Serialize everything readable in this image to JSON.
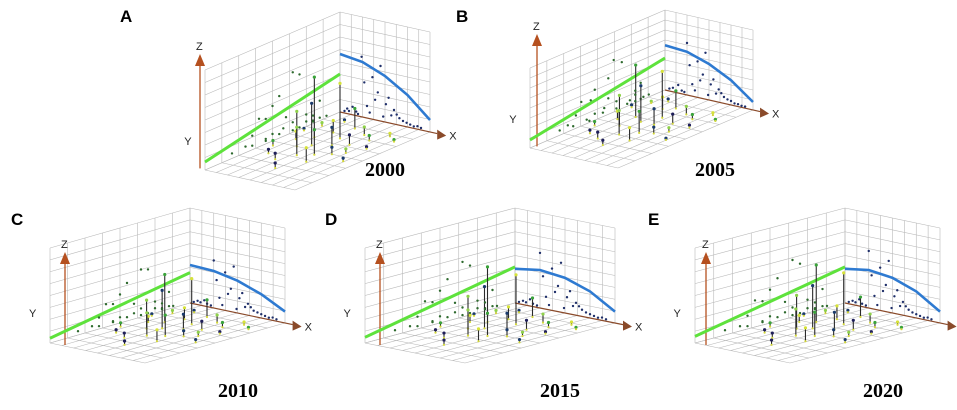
{
  "figure": {
    "panel_count": 5
  },
  "chart_data": [
    {
      "type": "scatter",
      "panel_label": "A",
      "year_label": "2000",
      "axes": {
        "x": "X",
        "y": "Y",
        "z": "Z"
      },
      "grid": true,
      "colors": {
        "xz_trend": "#2e7ad1",
        "yz_trend": "#5ee23c",
        "stem": "#2a2a2a",
        "axis_z": "#b5501f"
      },
      "trend_xz": [
        [
          0.0,
          0.58
        ],
        [
          0.25,
          0.55
        ],
        [
          0.5,
          0.46
        ],
        [
          0.75,
          0.32
        ],
        [
          1.0,
          0.12
        ]
      ],
      "trend_yz": [
        [
          0.0,
          0.08
        ],
        [
          1.0,
          0.38
        ]
      ],
      "points": [
        {
          "x": 0.05,
          "y": 0.3,
          "z": 0.02
        },
        {
          "x": 0.08,
          "y": 0.55,
          "z": 0.05
        },
        {
          "x": 0.1,
          "y": 0.2,
          "z": 0.03
        },
        {
          "x": 0.14,
          "y": 0.42,
          "z": 0.08
        },
        {
          "x": 0.18,
          "y": 0.65,
          "z": 0.04
        },
        {
          "x": 0.2,
          "y": 0.1,
          "z": 0.02
        },
        {
          "x": 0.24,
          "y": 0.35,
          "z": 0.6
        },
        {
          "x": 0.27,
          "y": 0.5,
          "z": 0.35
        },
        {
          "x": 0.3,
          "y": 0.25,
          "z": 0.12
        },
        {
          "x": 0.33,
          "y": 0.7,
          "z": 0.06
        },
        {
          "x": 0.36,
          "y": 0.45,
          "z": 0.42
        },
        {
          "x": 0.39,
          "y": 0.15,
          "z": 0.2
        },
        {
          "x": 0.42,
          "y": 0.6,
          "z": 0.28
        },
        {
          "x": 0.45,
          "y": 0.3,
          "z": 0.55
        },
        {
          "x": 0.48,
          "y": 0.8,
          "z": 0.05
        },
        {
          "x": 0.51,
          "y": 0.4,
          "z": 0.18
        },
        {
          "x": 0.54,
          "y": 0.55,
          "z": 0.25
        },
        {
          "x": 0.57,
          "y": 0.2,
          "z": 0.08
        },
        {
          "x": 0.6,
          "y": 0.65,
          "z": 0.14
        },
        {
          "x": 0.63,
          "y": 0.35,
          "z": 0.1
        },
        {
          "x": 0.66,
          "y": 0.5,
          "z": 0.07
        },
        {
          "x": 0.7,
          "y": 0.25,
          "z": 0.05
        },
        {
          "x": 0.74,
          "y": 0.45,
          "z": 0.04
        },
        {
          "x": 0.78,
          "y": 0.15,
          "z": 0.03
        },
        {
          "x": 0.82,
          "y": 0.35,
          "z": 0.02
        },
        {
          "x": 0.86,
          "y": 0.55,
          "z": 0.03
        },
        {
          "x": 0.9,
          "y": 0.2,
          "z": 0.02
        }
      ]
    },
    {
      "type": "scatter",
      "panel_label": "B",
      "year_label": "2005",
      "axes": {
        "x": "X",
        "y": "Y",
        "z": "Z"
      },
      "grid": true,
      "colors": {
        "xz_trend": "#2e7ad1",
        "yz_trend": "#5ee23c",
        "stem": "#2a2a2a",
        "axis_z": "#b5501f"
      },
      "trend_xz": [
        [
          0.0,
          0.56
        ],
        [
          0.25,
          0.54
        ],
        [
          0.5,
          0.45
        ],
        [
          0.75,
          0.31
        ],
        [
          1.0,
          0.1
        ]
      ],
      "trend_yz": [
        [
          0.0,
          0.1
        ],
        [
          1.0,
          0.4
        ]
      ],
      "points": [
        {
          "x": 0.05,
          "y": 0.28,
          "z": 0.03
        },
        {
          "x": 0.09,
          "y": 0.58,
          "z": 0.05
        },
        {
          "x": 0.12,
          "y": 0.18,
          "z": 0.02
        },
        {
          "x": 0.15,
          "y": 0.45,
          "z": 0.1
        },
        {
          "x": 0.19,
          "y": 0.68,
          "z": 0.04
        },
        {
          "x": 0.22,
          "y": 0.12,
          "z": 0.03
        },
        {
          "x": 0.25,
          "y": 0.38,
          "z": 0.65
        },
        {
          "x": 0.28,
          "y": 0.52,
          "z": 0.38
        },
        {
          "x": 0.31,
          "y": 0.22,
          "z": 0.15
        },
        {
          "x": 0.34,
          "y": 0.72,
          "z": 0.08
        },
        {
          "x": 0.37,
          "y": 0.42,
          "z": 0.45
        },
        {
          "x": 0.4,
          "y": 0.18,
          "z": 0.22
        },
        {
          "x": 0.43,
          "y": 0.62,
          "z": 0.3
        },
        {
          "x": 0.46,
          "y": 0.32,
          "z": 0.58
        },
        {
          "x": 0.49,
          "y": 0.78,
          "z": 0.06
        },
        {
          "x": 0.52,
          "y": 0.42,
          "z": 0.2
        },
        {
          "x": 0.55,
          "y": 0.55,
          "z": 0.27
        },
        {
          "x": 0.58,
          "y": 0.22,
          "z": 0.1
        },
        {
          "x": 0.61,
          "y": 0.66,
          "z": 0.16
        },
        {
          "x": 0.64,
          "y": 0.36,
          "z": 0.12
        },
        {
          "x": 0.67,
          "y": 0.52,
          "z": 0.08
        },
        {
          "x": 0.71,
          "y": 0.26,
          "z": 0.06
        },
        {
          "x": 0.75,
          "y": 0.46,
          "z": 0.05
        },
        {
          "x": 0.79,
          "y": 0.16,
          "z": 0.03
        },
        {
          "x": 0.83,
          "y": 0.36,
          "z": 0.03
        },
        {
          "x": 0.87,
          "y": 0.56,
          "z": 0.02
        },
        {
          "x": 0.91,
          "y": 0.22,
          "z": 0.02
        }
      ]
    },
    {
      "type": "scatter",
      "panel_label": "C",
      "year_label": "2010",
      "axes": {
        "x": "X",
        "y": "Y",
        "z": "Z"
      },
      "grid": true,
      "colors": {
        "xz_trend": "#2e7ad1",
        "yz_trend": "#5ee23c",
        "stem": "#2a2a2a",
        "axis_z": "#b5501f"
      },
      "trend_xz": [
        [
          0.0,
          0.4
        ],
        [
          0.25,
          0.39
        ],
        [
          0.5,
          0.34
        ],
        [
          0.75,
          0.25
        ],
        [
          1.0,
          0.12
        ]
      ],
      "trend_yz": [
        [
          0.0,
          0.05
        ],
        [
          1.0,
          0.32
        ]
      ],
      "points": [
        {
          "x": 0.04,
          "y": 0.3,
          "z": 0.02
        },
        {
          "x": 0.08,
          "y": 0.55,
          "z": 0.04
        },
        {
          "x": 0.11,
          "y": 0.2,
          "z": 0.03
        },
        {
          "x": 0.15,
          "y": 0.4,
          "z": 0.06
        },
        {
          "x": 0.18,
          "y": 0.65,
          "z": 0.03
        },
        {
          "x": 0.22,
          "y": 0.12,
          "z": 0.02
        },
        {
          "x": 0.25,
          "y": 0.35,
          "z": 0.5
        },
        {
          "x": 0.28,
          "y": 0.5,
          "z": 0.3
        },
        {
          "x": 0.31,
          "y": 0.25,
          "z": 0.12
        },
        {
          "x": 0.34,
          "y": 0.7,
          "z": 0.05
        },
        {
          "x": 0.37,
          "y": 0.45,
          "z": 0.4
        },
        {
          "x": 0.4,
          "y": 0.15,
          "z": 0.18
        },
        {
          "x": 0.43,
          "y": 0.6,
          "z": 0.24
        },
        {
          "x": 0.46,
          "y": 0.3,
          "z": 0.48
        },
        {
          "x": 0.49,
          "y": 0.8,
          "z": 0.04
        },
        {
          "x": 0.52,
          "y": 0.4,
          "z": 0.16
        },
        {
          "x": 0.55,
          "y": 0.55,
          "z": 0.22
        },
        {
          "x": 0.58,
          "y": 0.2,
          "z": 0.08
        },
        {
          "x": 0.61,
          "y": 0.65,
          "z": 0.12
        },
        {
          "x": 0.64,
          "y": 0.35,
          "z": 0.09
        },
        {
          "x": 0.67,
          "y": 0.5,
          "z": 0.06
        },
        {
          "x": 0.71,
          "y": 0.25,
          "z": 0.05
        },
        {
          "x": 0.75,
          "y": 0.45,
          "z": 0.04
        },
        {
          "x": 0.79,
          "y": 0.15,
          "z": 0.03
        },
        {
          "x": 0.83,
          "y": 0.35,
          "z": 0.02
        },
        {
          "x": 0.87,
          "y": 0.55,
          "z": 0.03
        },
        {
          "x": 0.91,
          "y": 0.2,
          "z": 0.02
        }
      ]
    },
    {
      "type": "scatter",
      "panel_label": "D",
      "year_label": "2015",
      "axes": {
        "x": "X",
        "y": "Y",
        "z": "Z"
      },
      "grid": true,
      "colors": {
        "xz_trend": "#2e7ad1",
        "yz_trend": "#5ee23c",
        "stem": "#2a2a2a",
        "axis_z": "#b5501f"
      },
      "trend_xz": [
        [
          0.0,
          0.36
        ],
        [
          0.25,
          0.4
        ],
        [
          0.5,
          0.37
        ],
        [
          0.75,
          0.28
        ],
        [
          1.0,
          0.12
        ]
      ],
      "trend_yz": [
        [
          0.0,
          0.06
        ],
        [
          1.0,
          0.38
        ]
      ],
      "points": [
        {
          "x": 0.04,
          "y": 0.3,
          "z": 0.02
        },
        {
          "x": 0.08,
          "y": 0.55,
          "z": 0.04
        },
        {
          "x": 0.11,
          "y": 0.2,
          "z": 0.03
        },
        {
          "x": 0.15,
          "y": 0.4,
          "z": 0.07
        },
        {
          "x": 0.18,
          "y": 0.65,
          "z": 0.03
        },
        {
          "x": 0.22,
          "y": 0.12,
          "z": 0.02
        },
        {
          "x": 0.25,
          "y": 0.35,
          "z": 0.58
        },
        {
          "x": 0.28,
          "y": 0.5,
          "z": 0.34
        },
        {
          "x": 0.31,
          "y": 0.25,
          "z": 0.13
        },
        {
          "x": 0.34,
          "y": 0.7,
          "z": 0.05
        },
        {
          "x": 0.37,
          "y": 0.45,
          "z": 0.44
        },
        {
          "x": 0.4,
          "y": 0.15,
          "z": 0.2
        },
        {
          "x": 0.43,
          "y": 0.6,
          "z": 0.27
        },
        {
          "x": 0.46,
          "y": 0.3,
          "z": 0.52
        },
        {
          "x": 0.49,
          "y": 0.8,
          "z": 0.05
        },
        {
          "x": 0.52,
          "y": 0.4,
          "z": 0.17
        },
        {
          "x": 0.55,
          "y": 0.55,
          "z": 0.24
        },
        {
          "x": 0.58,
          "y": 0.2,
          "z": 0.09
        },
        {
          "x": 0.61,
          "y": 0.65,
          "z": 0.13
        },
        {
          "x": 0.64,
          "y": 0.35,
          "z": 0.1
        },
        {
          "x": 0.67,
          "y": 0.5,
          "z": 0.07
        },
        {
          "x": 0.71,
          "y": 0.25,
          "z": 0.05
        },
        {
          "x": 0.75,
          "y": 0.45,
          "z": 0.04
        },
        {
          "x": 0.79,
          "y": 0.15,
          "z": 0.03
        },
        {
          "x": 0.83,
          "y": 0.35,
          "z": 0.02
        },
        {
          "x": 0.87,
          "y": 0.55,
          "z": 0.03
        },
        {
          "x": 0.91,
          "y": 0.2,
          "z": 0.02
        }
      ]
    },
    {
      "type": "scatter",
      "panel_label": "E",
      "year_label": "2020",
      "axes": {
        "x": "X",
        "y": "Y",
        "z": "Z"
      },
      "grid": true,
      "colors": {
        "xz_trend": "#2e7ad1",
        "yz_trend": "#5ee23c",
        "stem": "#2a2a2a",
        "axis_z": "#b5501f"
      },
      "trend_xz": [
        [
          0.0,
          0.36
        ],
        [
          0.25,
          0.4
        ],
        [
          0.5,
          0.37
        ],
        [
          0.75,
          0.28
        ],
        [
          1.0,
          0.12
        ]
      ],
      "trend_yz": [
        [
          0.0,
          0.07
        ],
        [
          1.0,
          0.38
        ]
      ],
      "points": [
        {
          "x": 0.04,
          "y": 0.3,
          "z": 0.02
        },
        {
          "x": 0.08,
          "y": 0.55,
          "z": 0.04
        },
        {
          "x": 0.11,
          "y": 0.2,
          "z": 0.03
        },
        {
          "x": 0.15,
          "y": 0.4,
          "z": 0.07
        },
        {
          "x": 0.18,
          "y": 0.65,
          "z": 0.03
        },
        {
          "x": 0.22,
          "y": 0.12,
          "z": 0.02
        },
        {
          "x": 0.25,
          "y": 0.35,
          "z": 0.6
        },
        {
          "x": 0.28,
          "y": 0.5,
          "z": 0.35
        },
        {
          "x": 0.31,
          "y": 0.25,
          "z": 0.14
        },
        {
          "x": 0.34,
          "y": 0.7,
          "z": 0.05
        },
        {
          "x": 0.37,
          "y": 0.45,
          "z": 0.45
        },
        {
          "x": 0.4,
          "y": 0.15,
          "z": 0.21
        },
        {
          "x": 0.43,
          "y": 0.6,
          "z": 0.28
        },
        {
          "x": 0.46,
          "y": 0.3,
          "z": 0.54
        },
        {
          "x": 0.49,
          "y": 0.8,
          "z": 0.05
        },
        {
          "x": 0.52,
          "y": 0.4,
          "z": 0.18
        },
        {
          "x": 0.55,
          "y": 0.55,
          "z": 0.25
        },
        {
          "x": 0.58,
          "y": 0.2,
          "z": 0.09
        },
        {
          "x": 0.61,
          "y": 0.65,
          "z": 0.14
        },
        {
          "x": 0.64,
          "y": 0.35,
          "z": 0.1
        },
        {
          "x": 0.67,
          "y": 0.5,
          "z": 0.07
        },
        {
          "x": 0.71,
          "y": 0.25,
          "z": 0.05
        },
        {
          "x": 0.75,
          "y": 0.45,
          "z": 0.04
        },
        {
          "x": 0.79,
          "y": 0.15,
          "z": 0.03
        },
        {
          "x": 0.83,
          "y": 0.35,
          "z": 0.02
        },
        {
          "x": 0.87,
          "y": 0.55,
          "z": 0.03
        },
        {
          "x": 0.91,
          "y": 0.2,
          "z": 0.02
        }
      ]
    }
  ]
}
